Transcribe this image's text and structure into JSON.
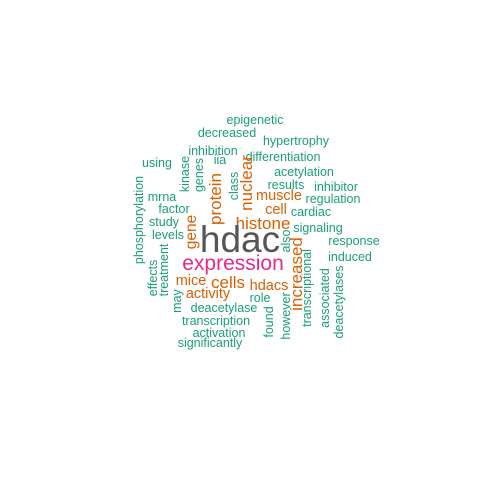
{
  "palette": {
    "green": "#1b9e77",
    "orange": "#d95f02",
    "magenta": "#e7298a",
    "gray": "#555555"
  },
  "words": [
    {
      "id": "hdac",
      "text": "hdac",
      "color": "gray"
    },
    {
      "id": "expression",
      "text": "expression",
      "color": "magenta"
    },
    {
      "id": "histone",
      "text": "histone",
      "color": "orange"
    },
    {
      "id": "cells",
      "text": "cells",
      "color": "orange"
    },
    {
      "id": "protein",
      "text": "protein",
      "color": "orange"
    },
    {
      "id": "gene",
      "text": "gene",
      "color": "orange"
    },
    {
      "id": "nuclear",
      "text": "nuclear",
      "color": "orange"
    },
    {
      "id": "muscle",
      "text": "muscle",
      "color": "orange"
    },
    {
      "id": "cell",
      "text": "cell",
      "color": "orange"
    },
    {
      "id": "mice",
      "text": "mice",
      "color": "orange"
    },
    {
      "id": "activity",
      "text": "activity",
      "color": "orange"
    },
    {
      "id": "hdacs",
      "text": "hdacs",
      "color": "orange"
    },
    {
      "id": "increased",
      "text": "increased",
      "color": "orange"
    },
    {
      "id": "epigenetic",
      "text": "epigenetic",
      "color": "green"
    },
    {
      "id": "decreased",
      "text": "decreased",
      "color": "green"
    },
    {
      "id": "hypertrophy",
      "text": "hypertrophy",
      "color": "green"
    },
    {
      "id": "inhibition",
      "text": "inhibition",
      "color": "green"
    },
    {
      "id": "differentiation",
      "text": "differentiation",
      "color": "green"
    },
    {
      "id": "using",
      "text": "using",
      "color": "green"
    },
    {
      "id": "iia",
      "text": "iia",
      "color": "green"
    },
    {
      "id": "acetylation",
      "text": "acetylation",
      "color": "green"
    },
    {
      "id": "results",
      "text": "results",
      "color": "green"
    },
    {
      "id": "inhibitor",
      "text": "inhibitor",
      "color": "green"
    },
    {
      "id": "mrna",
      "text": "mrna",
      "color": "green"
    },
    {
      "id": "regulation",
      "text": "regulation",
      "color": "green"
    },
    {
      "id": "factor",
      "text": "factor",
      "color": "green"
    },
    {
      "id": "cardiac",
      "text": "cardiac",
      "color": "green"
    },
    {
      "id": "study",
      "text": "study",
      "color": "green"
    },
    {
      "id": "signaling",
      "text": "signaling",
      "color": "green"
    },
    {
      "id": "levels",
      "text": "levels",
      "color": "green"
    },
    {
      "id": "response",
      "text": "response",
      "color": "green"
    },
    {
      "id": "induced",
      "text": "induced",
      "color": "green"
    },
    {
      "id": "role",
      "text": "role",
      "color": "green"
    },
    {
      "id": "deacetylase",
      "text": "deacetylase",
      "color": "green"
    },
    {
      "id": "transcription",
      "text": "transcription",
      "color": "green"
    },
    {
      "id": "activation",
      "text": "activation",
      "color": "green"
    },
    {
      "id": "significantly",
      "text": "significantly",
      "color": "green"
    },
    {
      "id": "kinase",
      "text": "kinase",
      "color": "green"
    },
    {
      "id": "genes",
      "text": "genes",
      "color": "green"
    },
    {
      "id": "class",
      "text": "class",
      "color": "green"
    },
    {
      "id": "phosphorylation",
      "text": "phosphorylation",
      "color": "green"
    },
    {
      "id": "treatment",
      "text": "treatment",
      "color": "green"
    },
    {
      "id": "effects",
      "text": "effects",
      "color": "green"
    },
    {
      "id": "may",
      "text": "may",
      "color": "green"
    },
    {
      "id": "also",
      "text": "also",
      "color": "green"
    },
    {
      "id": "found",
      "text": "found",
      "color": "green"
    },
    {
      "id": "however",
      "text": "however",
      "color": "green"
    },
    {
      "id": "transcriptional",
      "text": "transcriptional",
      "color": "green"
    },
    {
      "id": "associated",
      "text": "associated",
      "color": "green"
    },
    {
      "id": "deacetylases",
      "text": "deacetylases",
      "color": "green"
    }
  ]
}
